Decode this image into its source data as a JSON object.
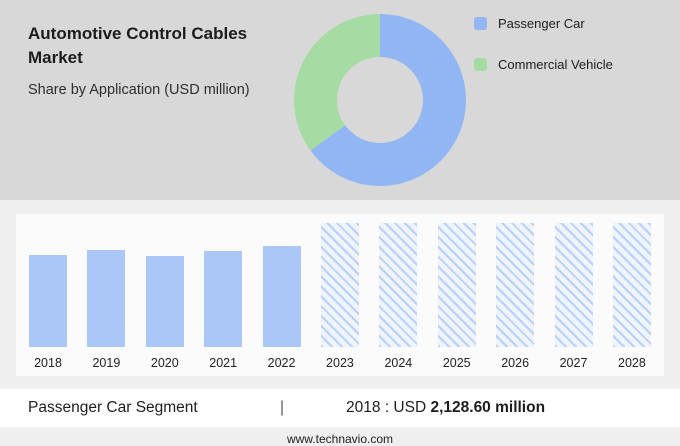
{
  "header": {
    "title": "Automotive Control Cables Market",
    "subtitle": "Share by Application (USD million)"
  },
  "legend": {
    "items": [
      {
        "label": "Passenger Car",
        "color": "#92b6f4"
      },
      {
        "label": "Commercial Vehicle",
        "color": "#a6dca4"
      }
    ]
  },
  "chart_data": [
    {
      "type": "pie",
      "subtype": "donut",
      "title": "Share by Application (USD million)",
      "segments": [
        {
          "label": "Passenger Car",
          "value_pct": 65,
          "color": "#92b6f4"
        },
        {
          "label": "Commercial Vehicle",
          "value_pct": 35,
          "color": "#a6dca4"
        }
      ],
      "legend_position": "right"
    },
    {
      "type": "bar",
      "title": "Passenger Car Segment by year",
      "categories": [
        "2018",
        "2019",
        "2020",
        "2021",
        "2022",
        "2023",
        "2024",
        "2025",
        "2026",
        "2027",
        "2028"
      ],
      "known_point": {
        "year": "2018",
        "value": "USD 2,128.60 million"
      },
      "bars": [
        {
          "year": "2018",
          "height_pct": 72,
          "forecast": false
        },
        {
          "year": "2019",
          "height_pct": 76,
          "forecast": false
        },
        {
          "year": "2020",
          "height_pct": 71,
          "forecast": false
        },
        {
          "year": "2021",
          "height_pct": 75,
          "forecast": false
        },
        {
          "year": "2022",
          "height_pct": 79,
          "forecast": false
        },
        {
          "year": "2023",
          "height_pct": 97,
          "forecast": true
        },
        {
          "year": "2024",
          "height_pct": 97,
          "forecast": true
        },
        {
          "year": "2025",
          "height_pct": 97,
          "forecast": true
        },
        {
          "year": "2026",
          "height_pct": 97,
          "forecast": true
        },
        {
          "year": "2027",
          "height_pct": 97,
          "forecast": true
        },
        {
          "year": "2028",
          "height_pct": 97,
          "forecast": true
        }
      ],
      "bar_color": "#aac7f7",
      "forecast_style": "hatched-diagonal",
      "grid": false,
      "xlabel": "",
      "ylabel": "",
      "annotations": [
        "2023-2028 bars are hatched forecast placeholders"
      ]
    }
  ],
  "footer": {
    "segment_label": "Passenger Car Segment",
    "divider": "|",
    "value_prefix": "2018 : USD ",
    "value_bold": "2,128.60 million",
    "website": "www.technavio.com"
  },
  "colors": {
    "top_background": "#d8d8d8",
    "bottom_background": "#efefef",
    "chart_card_background": "#fbfbfb",
    "footer_background": "#ffffff"
  }
}
